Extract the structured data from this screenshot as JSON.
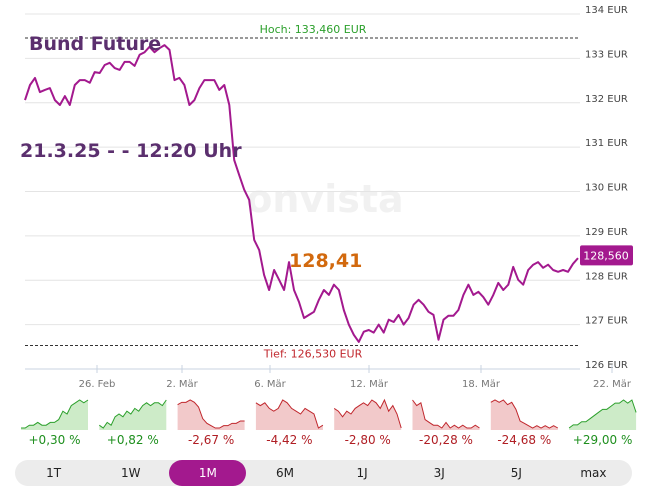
{
  "header": {
    "title": "Bund Future",
    "timestamp": "21.3.25 - - 12:20 Uhr",
    "last_value_label": "128,41",
    "watermark": "onvista"
  },
  "chart_data": {
    "type": "line",
    "ylim": [
      126,
      134
    ],
    "y_ticks": [
      "134 EUR",
      "133 EUR",
      "132 EUR",
      "131 EUR",
      "130 EUR",
      "129 EUR",
      "128 EUR",
      "127 EUR",
      "126 EUR"
    ],
    "x_ticks": [
      "26. Feb",
      "2. Mär",
      "6. Mär",
      "12. Mär",
      "18. Mär",
      "22. Mär"
    ],
    "grid": true,
    "high": {
      "value": 133.46,
      "label": "Hoch: 133,460 EUR",
      "color": "#2ca02c"
    },
    "low": {
      "value": 126.53,
      "label": "Tief: 126,530 EUR",
      "color": "#c0272d"
    },
    "current": {
      "value": 128.56,
      "label": "128,560"
    },
    "line_color": "#a3198e",
    "values": [
      132.06,
      132.4,
      132.56,
      132.24,
      132.29,
      132.33,
      132.06,
      131.95,
      132.15,
      131.95,
      132.4,
      132.51,
      132.51,
      132.45,
      132.69,
      132.67,
      132.85,
      132.9,
      132.78,
      132.74,
      132.92,
      132.92,
      132.83,
      133.08,
      133.14,
      133.26,
      133.14,
      133.23,
      133.3,
      133.19,
      132.51,
      132.56,
      132.4,
      131.95,
      132.06,
      132.33,
      132.51,
      132.51,
      132.51,
      132.29,
      132.4,
      131.95,
      130.71,
      130.37,
      130.04,
      129.81,
      128.91,
      128.68,
      128.12,
      127.78,
      128.23,
      128.01,
      127.78,
      128.41,
      127.78,
      127.51,
      127.15,
      127.22,
      127.29,
      127.56,
      127.78,
      127.67,
      127.9,
      127.78,
      127.33,
      127.0,
      126.77,
      126.61,
      126.84,
      126.88,
      126.82,
      127.0,
      126.82,
      127.11,
      127.06,
      127.22,
      127.0,
      127.15,
      127.45,
      127.56,
      127.45,
      127.29,
      127.22,
      126.66,
      127.11,
      127.2,
      127.2,
      127.33,
      127.67,
      127.9,
      127.67,
      127.74,
      127.62,
      127.45,
      127.67,
      127.94,
      127.78,
      127.9,
      128.3,
      128.01,
      127.9,
      128.23,
      128.35,
      128.41,
      128.28,
      128.35,
      128.23,
      128.19,
      128.23,
      128.19,
      128.37,
      128.5
    ]
  },
  "periods": [
    {
      "label": "1T",
      "change": "+0,30 %",
      "trend": "up",
      "spark": [
        2,
        2,
        3,
        3,
        4,
        3,
        3,
        4,
        4,
        5,
        8,
        7,
        10,
        11,
        12,
        11,
        12
      ]
    },
    {
      "label": "1W",
      "change": "+0,82 %",
      "trend": "up",
      "spark": [
        4,
        3,
        5,
        4,
        7,
        8,
        7,
        9,
        8,
        10,
        9,
        11,
        12,
        11,
        12,
        12,
        11,
        13
      ]
    },
    {
      "label": "1M",
      "change": "-2,67 %",
      "trend": "down",
      "spark": [
        11,
        12,
        12,
        13,
        12,
        10,
        5,
        3,
        2,
        1,
        1,
        2,
        2,
        3,
        3,
        4,
        4
      ]
    },
    {
      "label": "6M",
      "change": "-4,42 %",
      "trend": "down",
      "spark": [
        10,
        9,
        10,
        8,
        7,
        8,
        11,
        10,
        8,
        7,
        6,
        8,
        7,
        6,
        1,
        2
      ]
    },
    {
      "label": "1J",
      "change": "-2,80 %",
      "trend": "down",
      "spark": [
        8,
        7,
        5,
        7,
        6,
        8,
        9,
        10,
        9,
        11,
        10,
        8,
        11,
        7,
        9,
        6,
        1
      ]
    },
    {
      "label": "3J",
      "change": "-20,28 %",
      "trend": "down",
      "spark": [
        12,
        10,
        11,
        5,
        4,
        3,
        3,
        2,
        4,
        2,
        3,
        2,
        3,
        2,
        2,
        3,
        2
      ]
    },
    {
      "label": "5J",
      "change": "-24,68 %",
      "trend": "down",
      "spark": [
        12,
        13,
        12,
        13,
        11,
        12,
        9,
        4,
        3,
        2,
        1,
        2,
        1,
        2,
        1,
        2,
        1
      ]
    },
    {
      "label": "max",
      "change": "+29,00 %",
      "trend": "up",
      "spark": [
        3,
        4,
        4,
        5,
        5,
        6,
        7,
        8,
        9,
        9,
        10,
        11,
        11,
        12,
        11,
        12,
        8
      ]
    }
  ],
  "active_period": "1M",
  "colors": {
    "up": "#2ca02c",
    "up_fill": "#cdebc8",
    "down": "#c0272d",
    "down_fill": "#f2c9ca",
    "accent": "#a3198e"
  }
}
